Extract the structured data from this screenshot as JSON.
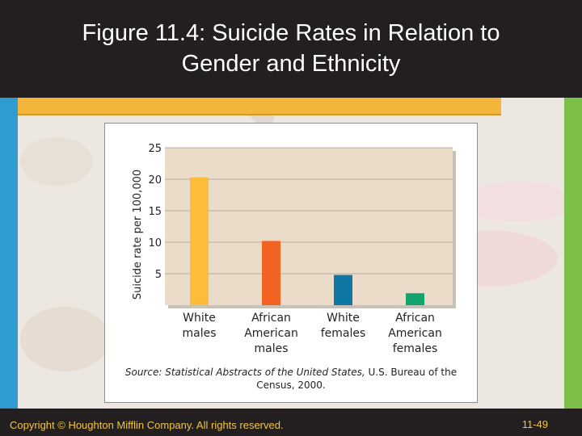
{
  "slide": {
    "title_line1": "Figure 11.4: Suicide Rates in Relation to",
    "title_line2": "Gender and Ethnicity",
    "footer_left": "Copyright © Houghton Mifflin Company. All rights reserved.",
    "footer_right": "11-49"
  },
  "source": {
    "prefix": "Source: Statistical Abstracts of the United States,",
    "suffix": "U.S. Bureau of the Census, 2000."
  },
  "colors": {
    "plot_bg": "#eadcc9",
    "gridline": "#b9ada0",
    "axis_text": "#231f20"
  },
  "chart_data": {
    "type": "bar",
    "title": "",
    "xlabel": "",
    "ylabel": "Suicide rate per 100,000",
    "ylim": [
      0,
      25
    ],
    "yticks": [
      5,
      10,
      15,
      20,
      25
    ],
    "grid": true,
    "categories": [
      [
        "White",
        "males"
      ],
      [
        "African",
        "American",
        "males"
      ],
      [
        "White",
        "females"
      ],
      [
        "African",
        "American",
        "females"
      ]
    ],
    "values": [
      20.3,
      10.2,
      4.8,
      1.9
    ],
    "bar_colors": [
      "#fbbd3a",
      "#f26322",
      "#0e77a3",
      "#12a36e"
    ]
  }
}
